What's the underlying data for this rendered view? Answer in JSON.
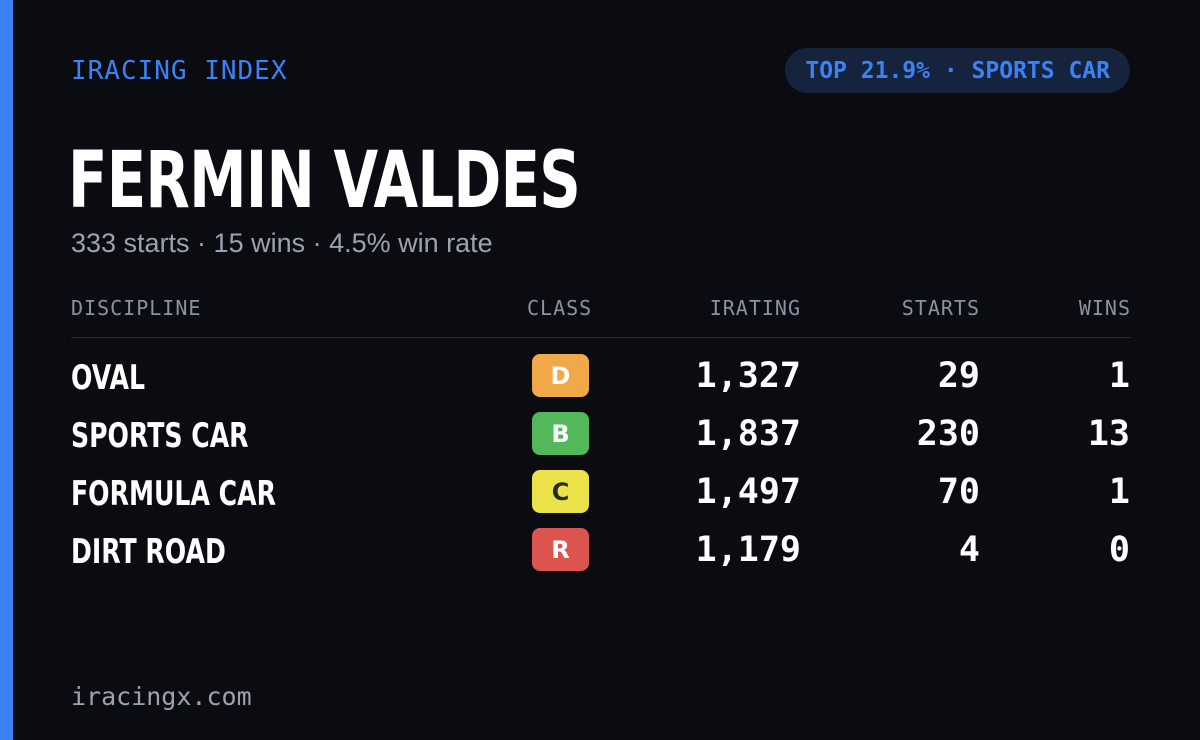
{
  "header": {
    "brand": "IRACING INDEX",
    "rank_badge": "TOP 21.9% · SPORTS CAR"
  },
  "driver": {
    "name": "FERMIN VALDES",
    "summary": "333 starts · 15 wins · 4.5% win rate"
  },
  "table": {
    "columns": [
      "DISCIPLINE",
      "CLASS",
      "IRATING",
      "STARTS",
      "WINS"
    ],
    "rows": [
      {
        "discipline": "OVAL",
        "class": "D",
        "class_color": "#f0a848",
        "class_text_color": "#ffffff",
        "irating": "1,327",
        "starts": "29",
        "wins": "1"
      },
      {
        "discipline": "SPORTS CAR",
        "class": "B",
        "class_color": "#52b85a",
        "class_text_color": "#ffffff",
        "irating": "1,837",
        "starts": "230",
        "wins": "13"
      },
      {
        "discipline": "FORMULA CAR",
        "class": "C",
        "class_color": "#ebe24a",
        "class_text_color": "#2a2a1a",
        "irating": "1,497",
        "starts": "70",
        "wins": "1"
      },
      {
        "discipline": "DIRT ROAD",
        "class": "R",
        "class_color": "#dc5450",
        "class_text_color": "#ffffff",
        "irating": "1,179",
        "starts": "4",
        "wins": "0"
      }
    ]
  },
  "footer": {
    "site": "iracingx.com"
  },
  "colors": {
    "accent": "#3b82f6",
    "background": "#0a0c12",
    "muted_text": "#9aa3b2"
  }
}
